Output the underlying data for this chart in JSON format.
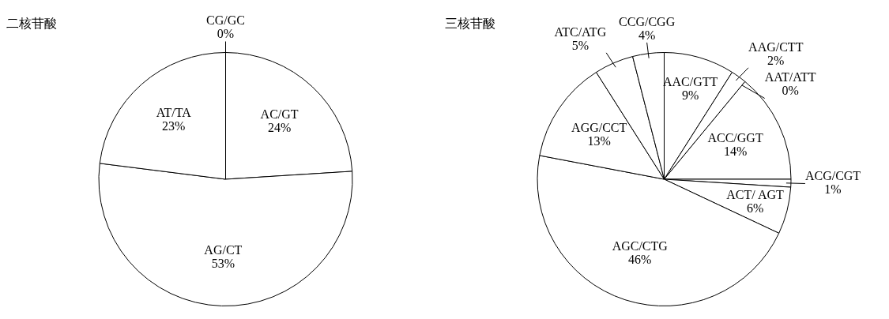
{
  "chart_data": [
    {
      "type": "pie",
      "title": "二核苷酸",
      "categories": [
        "AC/GT",
        "AG/CT",
        "AT/TA",
        "CG/GC"
      ],
      "values": [
        24,
        53,
        23,
        0
      ],
      "value_labels": [
        "24%",
        "53%",
        "23%",
        "0%"
      ],
      "colors": [
        "#ffffff",
        "#ffffff",
        "#ffffff",
        "#ffffff"
      ]
    },
    {
      "type": "pie",
      "title": "三核苷酸",
      "categories": [
        "AAC/GTT",
        "AAG/CTT",
        "AAT/ATT",
        "ACC/GGT",
        "ACG/CGT",
        "ACT/ AGT",
        "AGC/CTG",
        "AGG/CCT",
        "ATC/ATG",
        "CCG/CGG"
      ],
      "values": [
        9,
        2,
        0,
        14,
        1,
        6,
        46,
        13,
        5,
        4
      ],
      "value_labels": [
        "9%",
        "2%",
        "0%",
        "14%",
        "1%",
        "6%",
        "46%",
        "13%",
        "5%",
        "4%"
      ],
      "colors": [
        "#ffffff",
        "#ffffff",
        "#ffffff",
        "#ffffff",
        "#ffffff",
        "#ffffff",
        "#ffffff",
        "#ffffff",
        "#ffffff",
        "#ffffff"
      ]
    }
  ]
}
